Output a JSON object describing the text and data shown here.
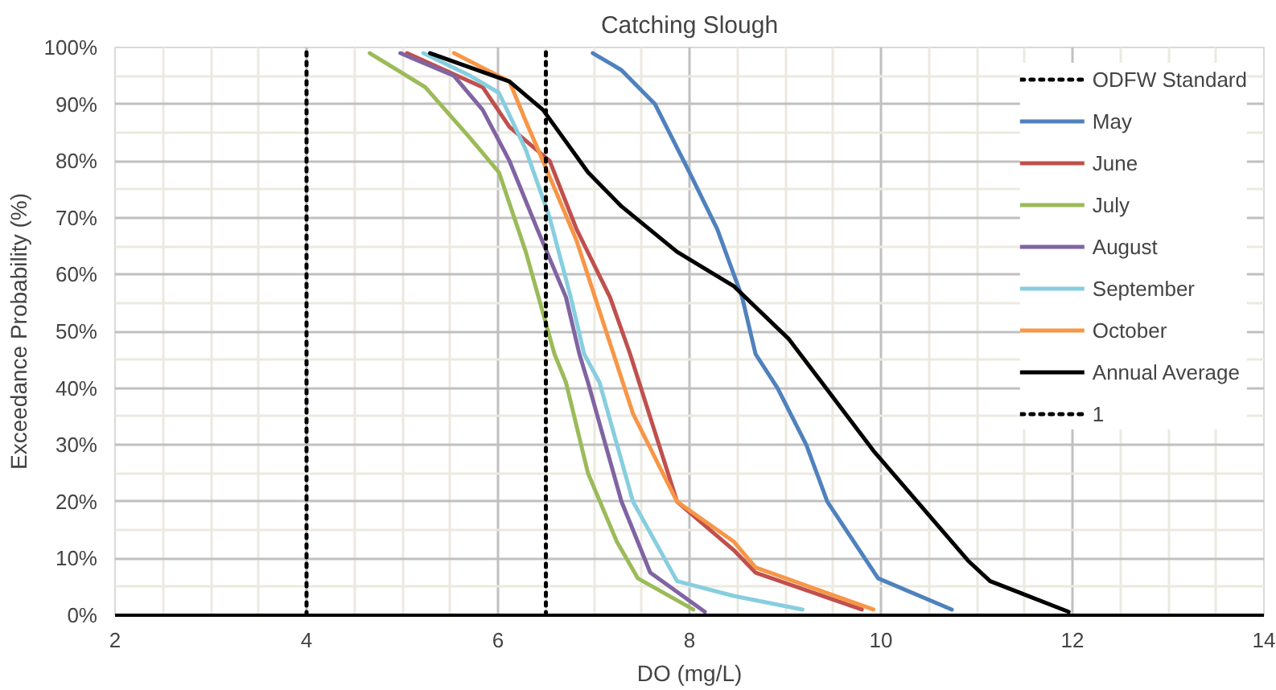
{
  "chart_data": {
    "type": "line",
    "title": "Catching Slough",
    "xlabel": "DO (mg/L)",
    "ylabel": "Exceedance Probability (%)",
    "xlim": [
      2,
      14
    ],
    "xticks": [
      2,
      4,
      6,
      8,
      10,
      12,
      14
    ],
    "ylim": [
      0,
      100
    ],
    "yticks": [
      {
        "value": 0,
        "label": "0%"
      },
      {
        "value": 10,
        "label": "10%"
      },
      {
        "value": 20,
        "label": "20%"
      },
      {
        "value": 30,
        "label": "30%"
      },
      {
        "value": 40,
        "label": "40%"
      },
      {
        "value": 50,
        "label": "50%"
      },
      {
        "value": 60,
        "label": "60%"
      },
      {
        "value": 70,
        "label": "70%"
      },
      {
        "value": 80,
        "label": "80%"
      },
      {
        "value": 90,
        "label": "90%"
      },
      {
        "value": 100,
        "label": "100%"
      }
    ],
    "grid": true,
    "legend": "top right",
    "marker": "none",
    "line_style": "solid",
    "series": [
      {
        "name": "ODFW Standard",
        "color": "#000000",
        "line_style": "dotted",
        "x": [
          4,
          4
        ],
        "values": [
          0,
          100
        ]
      },
      {
        "name": "May",
        "color": "#4f81bd",
        "x": [
          6.99,
          7.29,
          7.64,
          8.0,
          8.29,
          8.55,
          8.69,
          8.92,
          9.22,
          9.44,
          9.97,
          10.74
        ],
        "values": [
          99,
          96,
          90,
          78,
          68,
          56,
          46,
          40,
          30,
          20,
          6.5,
          1
        ]
      },
      {
        "name": "June",
        "color": "#c0504d",
        "x": [
          5.05,
          5.84,
          6.12,
          6.54,
          6.82,
          7.17,
          7.38,
          7.87,
          8.46,
          8.69,
          9.8
        ],
        "values": [
          99,
          93,
          86,
          80,
          68,
          56,
          46,
          20,
          11.5,
          7.5,
          1
        ]
      },
      {
        "name": "July",
        "color": "#9bbb59",
        "x": [
          4.66,
          5.24,
          5.71,
          6.01,
          6.29,
          6.59,
          6.71,
          6.94,
          7.24,
          7.46,
          8.04
        ],
        "values": [
          99,
          93,
          84,
          78,
          64,
          46,
          41,
          25,
          13,
          6.5,
          1
        ]
      },
      {
        "name": "August",
        "color": "#8064a2",
        "x": [
          4.98,
          5.54,
          5.84,
          6.12,
          6.41,
          6.71,
          6.85,
          6.94,
          7.29,
          7.59,
          8.16
        ],
        "values": [
          99,
          95,
          89,
          80,
          68,
          56,
          46,
          41,
          20,
          7.5,
          0.6
        ]
      },
      {
        "name": "September",
        "color": "#87cedf",
        "x": [
          5.22,
          5.71,
          6.01,
          6.29,
          6.54,
          6.76,
          6.9,
          7.06,
          7.41,
          7.87,
          8.46,
          9.18
        ],
        "values": [
          99,
          95,
          92,
          82,
          70,
          56,
          46,
          41,
          20,
          6,
          3.4,
          1
        ]
      },
      {
        "name": "October",
        "color": "#f79646",
        "x": [
          5.54,
          6.12,
          6.29,
          6.47,
          6.82,
          7.11,
          7.41,
          7.87,
          8.46,
          8.69,
          9.92
        ],
        "values": [
          99,
          94,
          87,
          80,
          66,
          51,
          35.5,
          20,
          13,
          8.4,
          1
        ]
      },
      {
        "name": "Annual Average",
        "color": "#000000",
        "x": [
          5.29,
          6.12,
          6.47,
          6.94,
          7.29,
          7.87,
          8.46,
          9.04,
          9.92,
          10.91,
          11.14,
          11.96
        ],
        "values": [
          99,
          94,
          89,
          78,
          72,
          64,
          58,
          48.6,
          29,
          9.6,
          6,
          0.6
        ]
      },
      {
        "name": "1",
        "color": "#000000",
        "line_style": "dotted",
        "x": [
          6.5,
          6.5
        ],
        "values": [
          0,
          100
        ]
      }
    ]
  }
}
